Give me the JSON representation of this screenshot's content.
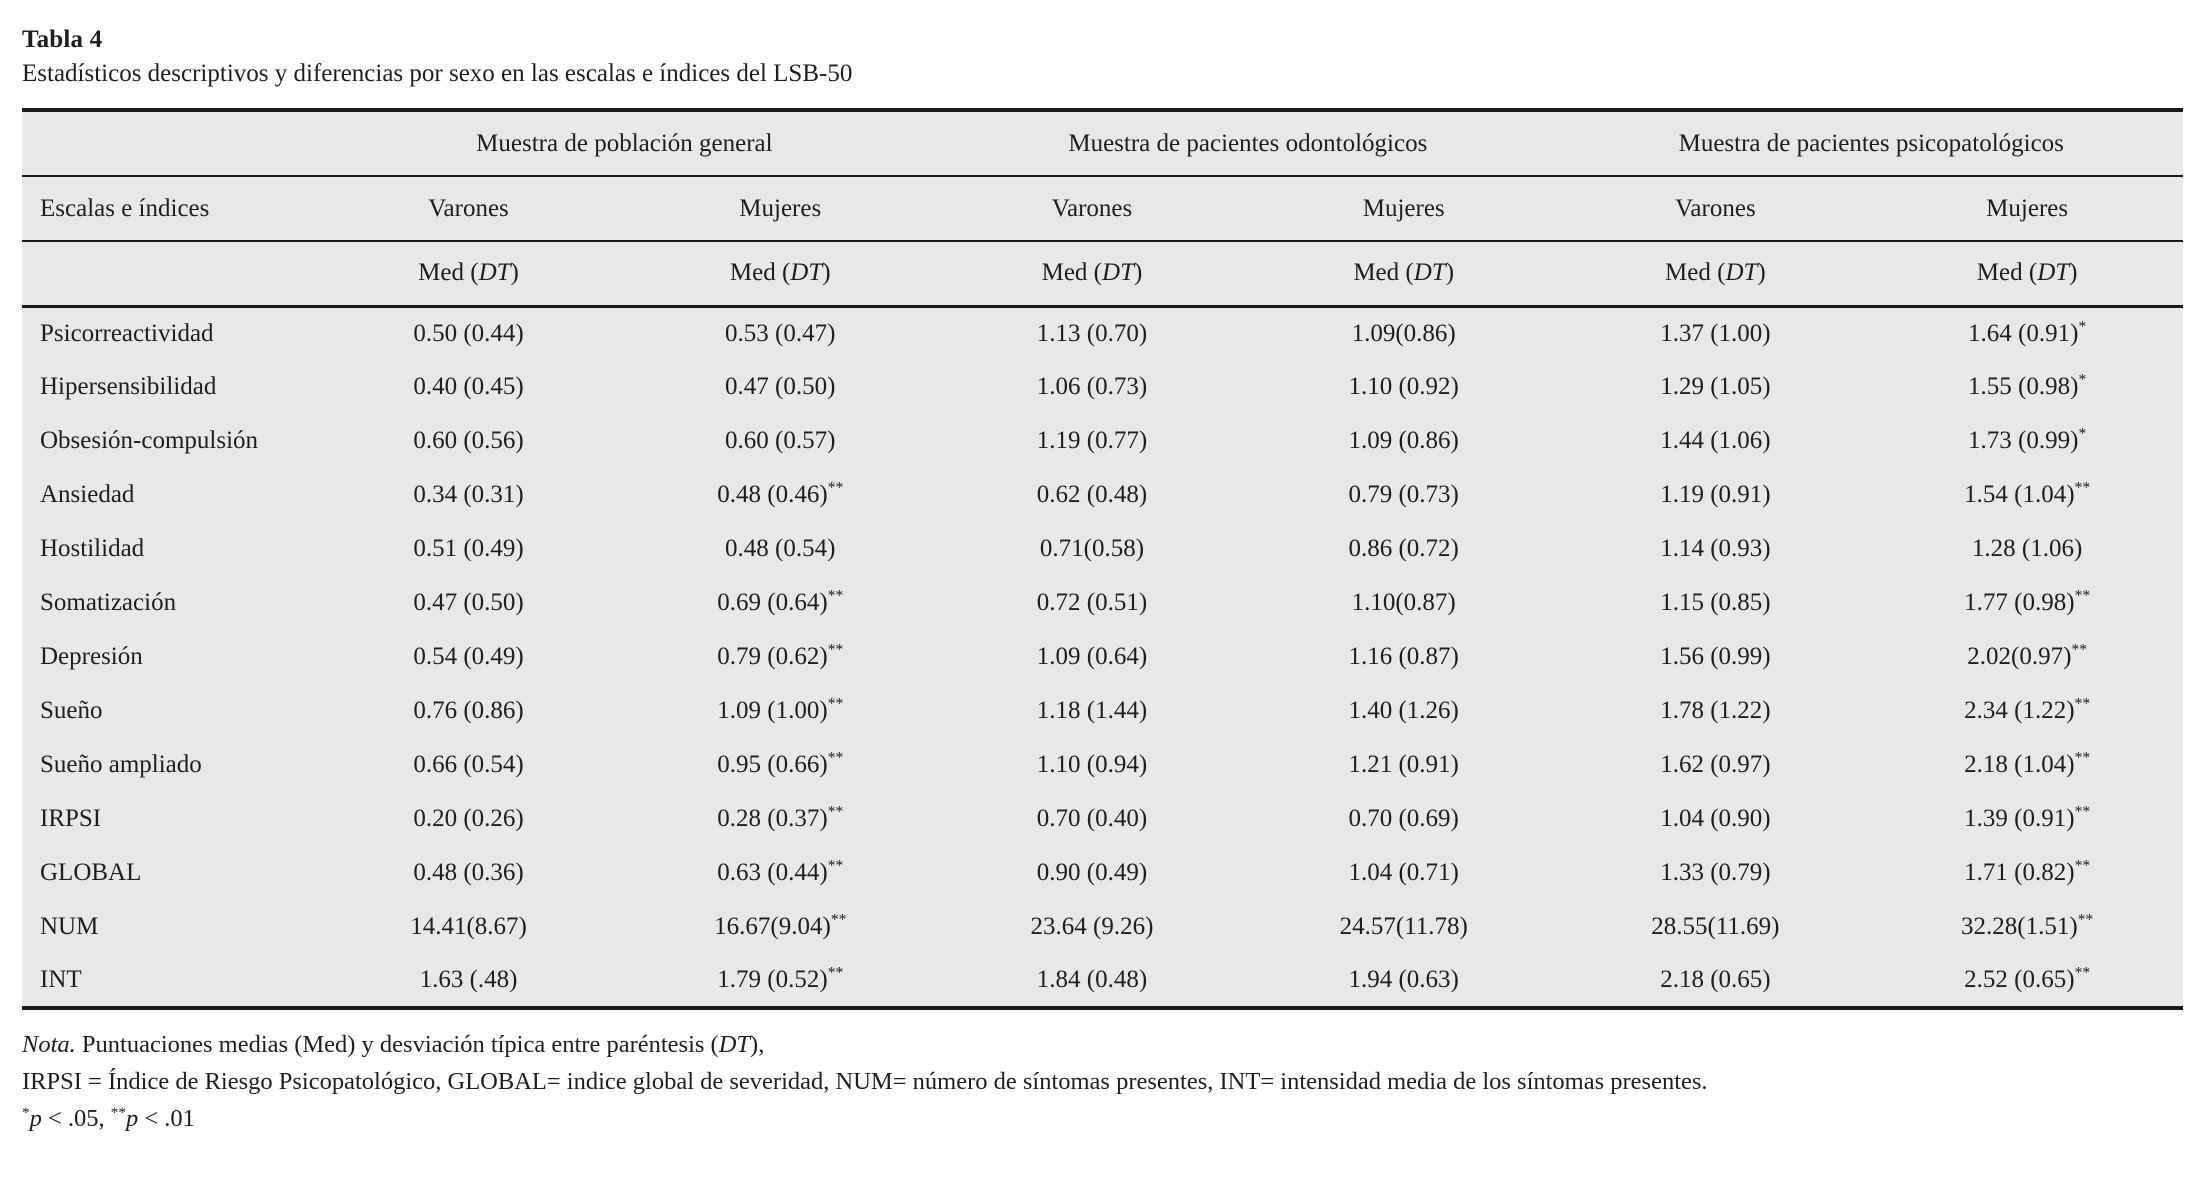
{
  "header": {
    "table_number": "Tabla 4",
    "caption": "Estadísticos descriptivos y diferencias por sexo en las escalas e índices del LSB-50"
  },
  "table": {
    "row_header": "Escalas e índices",
    "groups": [
      "Muestra de población general",
      "Muestra de pacientes odontológicos",
      "Muestra de pacientes psicopatológicos"
    ],
    "sex_headers": [
      "Varones",
      "Mujeres",
      "Varones",
      "Mujeres",
      "Varones",
      "Mujeres"
    ],
    "stat_header": {
      "pre": "Med (",
      "italic": "DT",
      "post": ")"
    },
    "rows": [
      {
        "label": "Psicorreactividad",
        "values": [
          "0.50 (0.44)",
          "0.53 (0.47)",
          "1.13 (0.70)",
          "1.09(0.86)",
          "1.37 (1.00)",
          "1.64 (0.91)*"
        ]
      },
      {
        "label": "Hipersensibilidad",
        "values": [
          "0.40 (0.45)",
          "0.47 (0.50)",
          "1.06 (0.73)",
          "1.10 (0.92)",
          "1.29 (1.05)",
          "1.55 (0.98)*"
        ]
      },
      {
        "label": "Obsesión-compulsión",
        "values": [
          "0.60 (0.56)",
          "0.60 (0.57)",
          "1.19 (0.77)",
          "1.09 (0.86)",
          "1.44 (1.06)",
          "1.73 (0.99)*"
        ]
      },
      {
        "label": "Ansiedad",
        "values": [
          "0.34 (0.31)",
          "0.48 (0.46)**",
          "0.62 (0.48)",
          "0.79 (0.73)",
          "1.19 (0.91)",
          "1.54 (1.04)**"
        ]
      },
      {
        "label": "Hostilidad",
        "values": [
          "0.51 (0.49)",
          "0.48 (0.54)",
          "0.71(0.58)",
          "0.86 (0.72)",
          "1.14 (0.93)",
          "1.28 (1.06)"
        ]
      },
      {
        "label": "Somatización",
        "values": [
          "0.47 (0.50)",
          "0.69 (0.64)**",
          "0.72 (0.51)",
          "1.10(0.87)",
          "1.15 (0.85)",
          "1.77 (0.98)**"
        ]
      },
      {
        "label": "Depresión",
        "values": [
          "0.54 (0.49)",
          "0.79 (0.62)**",
          "1.09 (0.64)",
          "1.16 (0.87)",
          "1.56 (0.99)",
          "2.02(0.97)**"
        ]
      },
      {
        "label": "Sueño",
        "values": [
          "0.76 (0.86)",
          "1.09 (1.00)**",
          "1.18 (1.44)",
          "1.40 (1.26)",
          "1.78 (1.22)",
          "2.34 (1.22)**"
        ]
      },
      {
        "label": "Sueño ampliado",
        "values": [
          "0.66 (0.54)",
          "0.95 (0.66)**",
          "1.10 (0.94)",
          "1.21 (0.91)",
          "1.62 (0.97)",
          "2.18 (1.04)**"
        ]
      },
      {
        "label": "IRPSI",
        "values": [
          "0.20 (0.26)",
          "0.28 (0.37)**",
          "0.70 (0.40)",
          "0.70 (0.69)",
          "1.04 (0.90)",
          "1.39 (0.91)**"
        ]
      },
      {
        "label": "GLOBAL",
        "values": [
          "0.48 (0.36)",
          "0.63 (0.44)**",
          "0.90 (0.49)",
          "1.04 (0.71)",
          "1.33 (0.79)",
          "1.71 (0.82)**"
        ]
      },
      {
        "label": "NUM",
        "values": [
          "14.41(8.67)",
          "16.67(9.04)**",
          "23.64 (9.26)",
          "24.57(11.78)",
          "28.55(11.69)",
          "32.28(1.51)**"
        ]
      },
      {
        "label": "INT",
        "values": [
          "1.63 (.48)",
          "1.79 (0.52)**",
          "1.84 (0.48)",
          "1.94 (0.63)",
          "2.18 (0.65)",
          "2.52 (0.65)**"
        ]
      }
    ]
  },
  "notes": {
    "nota": "Nota.",
    "line1_a": " Puntuaciones medias (Med) y desviación típica entre paréntesis (",
    "line1_dt": "DT",
    "line1_b": "),",
    "line2": "IRPSI = Índice de Riesgo Psicopatológico, GLOBAL= indice global de severidad, NUM= número de síntomas presentes, INT= intensidad media de los síntomas presentes.",
    "sig": [
      {
        "stars": "*",
        "p": "p",
        "text": " < .05, "
      },
      {
        "stars": "**",
        "p": "p",
        "text": " < .01"
      }
    ]
  },
  "colors": {
    "table_background": "#e8e8e6",
    "rule": "#1b1b1b",
    "text": "#1e1e1e",
    "page_background": "#ffffff"
  }
}
